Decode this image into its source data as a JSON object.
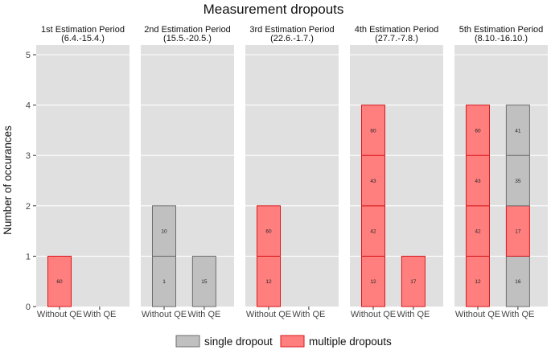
{
  "chart_data": {
    "type": "bar",
    "title": "Measurement dropouts",
    "ylabel": "Number of occurances",
    "xlabel": "",
    "ylim": [
      0,
      5
    ],
    "yticks": [
      0,
      1,
      2,
      3,
      4,
      5
    ],
    "grid": true,
    "legend_position": "bottom",
    "categories": [
      "Without QE",
      "With QE"
    ],
    "legend": [
      {
        "key": "single",
        "label": "single dropout",
        "fill": "#c0c0c0",
        "stroke": "#6e6e6e"
      },
      {
        "key": "multiple",
        "label": "multiple dropouts",
        "fill": "#ff7f7f",
        "stroke": "#d7191c"
      }
    ],
    "panel_background": "#e0e0e0",
    "panels": [
      {
        "title": "1st Estimation Period",
        "subtitle": "(6.4.-15.4.)",
        "bars": [
          {
            "category": "Without QE",
            "segments": [
              {
                "type": "multiple",
                "label": "60"
              }
            ]
          },
          {
            "category": "With QE",
            "segments": []
          }
        ]
      },
      {
        "title": "2nd Estimation Period",
        "subtitle": "(15.5.-20.5.)",
        "bars": [
          {
            "category": "Without QE",
            "segments": [
              {
                "type": "single",
                "label": "1"
              },
              {
                "type": "single",
                "label": "10"
              }
            ]
          },
          {
            "category": "With QE",
            "segments": [
              {
                "type": "single",
                "label": "15"
              }
            ]
          }
        ]
      },
      {
        "title": "3rd Estimation Period",
        "subtitle": "(22.6.-1.7.)",
        "bars": [
          {
            "category": "Without QE",
            "segments": [
              {
                "type": "multiple",
                "label": "12"
              },
              {
                "type": "multiple",
                "label": "60"
              }
            ]
          },
          {
            "category": "With QE",
            "segments": []
          }
        ]
      },
      {
        "title": "4th Estimation Period",
        "subtitle": "(27.7.-7.8.)",
        "bars": [
          {
            "category": "Without QE",
            "segments": [
              {
                "type": "multiple",
                "label": "12"
              },
              {
                "type": "multiple",
                "label": "42"
              },
              {
                "type": "multiple",
                "label": "43"
              },
              {
                "type": "multiple",
                "label": "60"
              }
            ]
          },
          {
            "category": "With QE",
            "segments": [
              {
                "type": "multiple",
                "label": "17"
              }
            ]
          }
        ]
      },
      {
        "title": "5th Estimation Period",
        "subtitle": "(8.10.-16.10.)",
        "bars": [
          {
            "category": "Without QE",
            "segments": [
              {
                "type": "multiple",
                "label": "12"
              },
              {
                "type": "multiple",
                "label": "42"
              },
              {
                "type": "multiple",
                "label": "43"
              },
              {
                "type": "multiple",
                "label": "60"
              }
            ]
          },
          {
            "category": "With QE",
            "segments": [
              {
                "type": "single",
                "label": "16"
              },
              {
                "type": "multiple",
                "label": "17"
              },
              {
                "type": "single",
                "label": "35"
              },
              {
                "type": "single",
                "label": "41"
              }
            ]
          }
        ]
      }
    ]
  }
}
